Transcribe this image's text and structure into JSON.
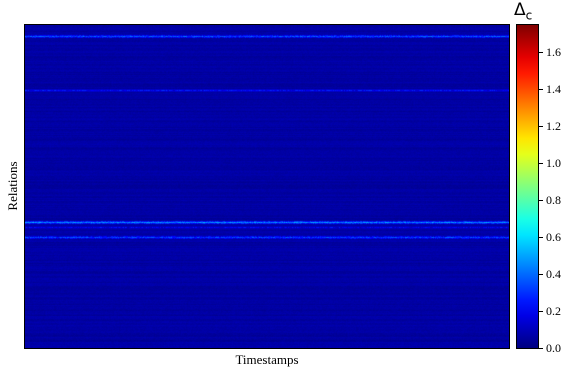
{
  "chart_data": {
    "type": "heatmap",
    "xlabel": "Timestamps",
    "ylabel": "Relations",
    "colorbar": {
      "title_symbol": "Δ",
      "title_subscript": "c",
      "colormap": "jet",
      "range": [
        0.0,
        1.75
      ],
      "ticks": [
        "0.0",
        "0.2",
        "0.4",
        "0.6",
        "0.8",
        "1.0",
        "1.2",
        "1.4",
        "1.6"
      ]
    },
    "background_value": 0.04,
    "highlighted_rows": [
      {
        "relation_fraction": 0.035,
        "value": 0.35
      },
      {
        "relation_fraction": 0.2,
        "value": 0.22
      },
      {
        "relation_fraction": 0.61,
        "value": 0.45
      },
      {
        "relation_fraction": 0.625,
        "value": 0.18
      },
      {
        "relation_fraction": 0.655,
        "value": 0.32
      }
    ]
  }
}
